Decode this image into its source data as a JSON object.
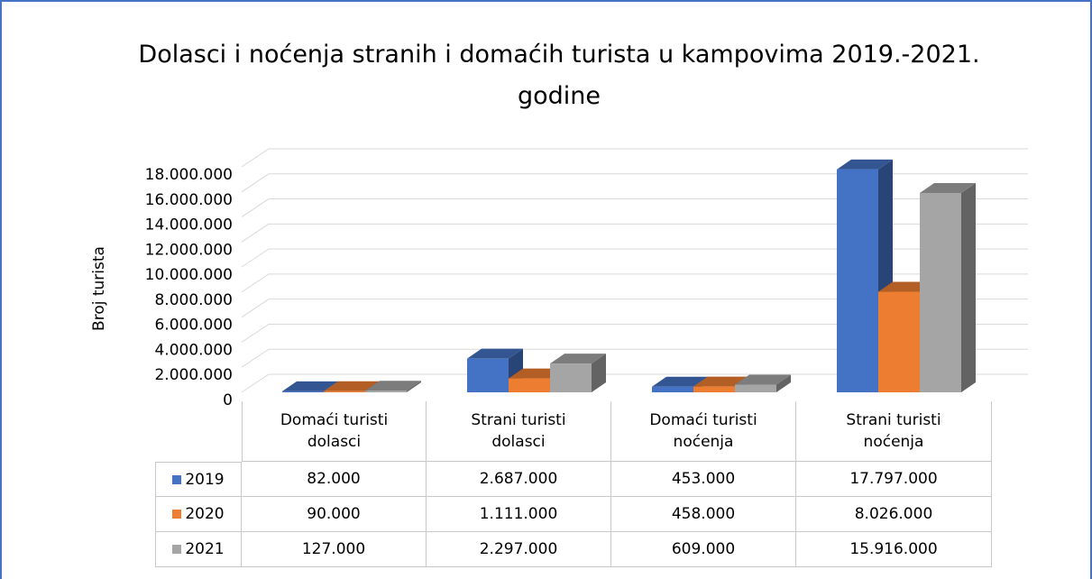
{
  "chart_data": {
    "type": "bar3d",
    "title": "Dolasci i noćenja stranih i domaćih turista u kampovima 2019.-2021. godine",
    "y_label": "Broj turista",
    "categories": [
      "Domaći turisti dolasci",
      "Strani turisti dolasci",
      "Domaći turisti noćenja",
      "Strani turisti noćenja"
    ],
    "series": [
      {
        "name": "2019",
        "color": "#4472c4",
        "values": [
          82000,
          2687000,
          453000,
          17797000
        ],
        "value_labels": [
          "82.000",
          "2.687.000",
          "453.000",
          "17.797.000"
        ]
      },
      {
        "name": "2020",
        "color": "#ed7d31",
        "values": [
          90000,
          1111000,
          458000,
          8026000
        ],
        "value_labels": [
          "90.000",
          "1.111.000",
          "458.000",
          "8.026.000"
        ]
      },
      {
        "name": "2021",
        "color": "#a5a5a5",
        "values": [
          127000,
          2297000,
          609000,
          15916000
        ],
        "value_labels": [
          "127.000",
          "2.297.000",
          "609.000",
          "15.916.000"
        ]
      }
    ],
    "ylim": [
      0,
      18000000
    ],
    "yticks": [
      0,
      {
        "value": 2000000,
        "label": "2.000.000"
      },
      {
        "value": 4000000,
        "label": "4.000.000"
      },
      {
        "value": 6000000,
        "label": "6.000.000"
      },
      {
        "value": 8000000,
        "label": "8.000.000"
      },
      {
        "value": 10000000,
        "label": "10.000.000"
      },
      {
        "value": 12000000,
        "label": "12.000.000"
      },
      {
        "value": 14000000,
        "label": "14.000.000"
      },
      {
        "value": 16000000,
        "label": "16.000.000"
      },
      {
        "value": 18000000,
        "label": "18.000.000"
      }
    ],
    "grid": true
  }
}
